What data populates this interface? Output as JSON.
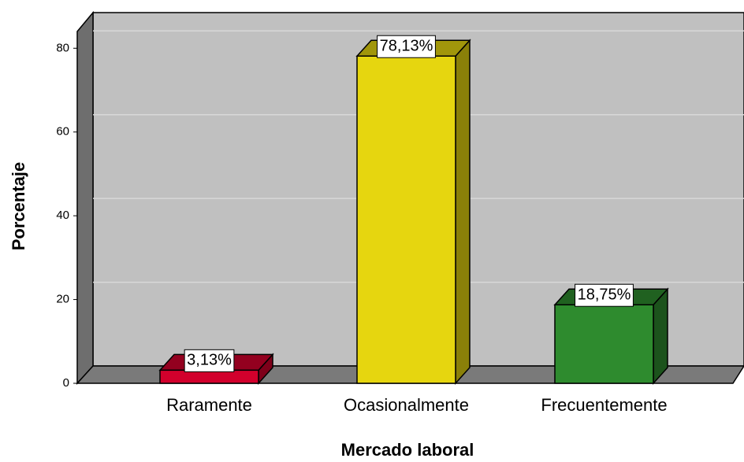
{
  "chart_data": {
    "type": "bar",
    "categories": [
      "Raramente",
      "Ocasionalmente",
      "Frecuentemente"
    ],
    "values": [
      3.13,
      78.13,
      18.75
    ],
    "value_labels": [
      "3,13%",
      "78,13%",
      "18,75%"
    ],
    "colors": [
      "#d2002c",
      "#e6d60f",
      "#2e8b2e"
    ],
    "xlabel": "Mercado laboral",
    "ylabel": "Porcentaje",
    "ylim": [
      0,
      84
    ],
    "yticks": [
      0,
      20,
      40,
      60,
      80
    ],
    "grid": true
  }
}
